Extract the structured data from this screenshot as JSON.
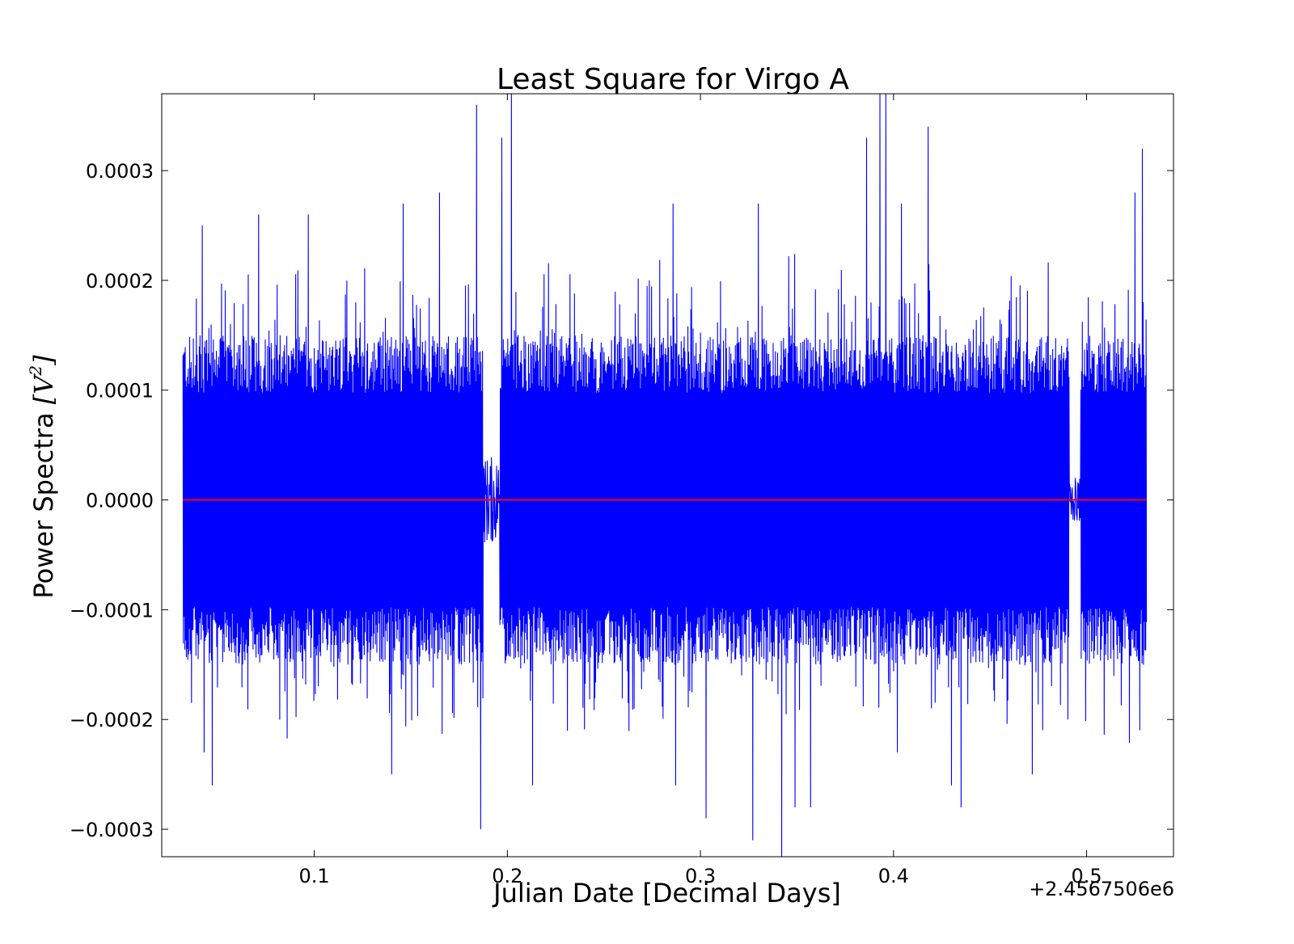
{
  "chart_data": {
    "type": "line",
    "title": "Least Square for Virgo A",
    "xlabel": "Julian Date [Decimal Days]",
    "ylabel_text": "Power Spectra ",
    "ylabel_unit_open": "[",
    "ylabel_unit_symbol": "V",
    "ylabel_unit_power": "2",
    "ylabel_unit_close": "]",
    "x_offset_label": "+2.4567506e6",
    "xlim": [
      0.021,
      0.545
    ],
    "ylim": [
      -0.000325,
      0.00037
    ],
    "xticks": [
      0.1,
      0.2,
      0.3,
      0.4,
      0.5
    ],
    "xtick_labels": [
      "0.1",
      "0.2",
      "0.3",
      "0.4",
      "0.5"
    ],
    "yticks": [
      -0.0003,
      -0.0002,
      -0.0001,
      0.0,
      0.0001,
      0.0002,
      0.0003
    ],
    "ytick_labels": [
      "−0.0003",
      "−0.0002",
      "−0.0001",
      "0.0000",
      "0.0001",
      "0.0002",
      "0.0003"
    ],
    "grid": false,
    "series": [
      {
        "color": "#0000ff",
        "x_start": 0.032,
        "x_end": 0.531,
        "envelope_max": 0.00015,
        "envelope_min": -0.00015,
        "quiet_intervals": [
          {
            "x_start": 0.1875,
            "x_end": 0.196,
            "amplitude": 4e-05
          },
          {
            "x_start": 0.491,
            "x_end": 0.497,
            "amplitude": 2e-05
          }
        ],
        "peaks": [
          {
            "x": 0.184,
            "y": 0.00036
          },
          {
            "x": 0.202,
            "y": 0.00037
          },
          {
            "x": 0.197,
            "y": 0.00033
          },
          {
            "x": 0.393,
            "y": 0.00037
          },
          {
            "x": 0.396,
            "y": 0.00037
          },
          {
            "x": 0.386,
            "y": 0.00033
          },
          {
            "x": 0.418,
            "y": 0.00034
          },
          {
            "x": 0.529,
            "y": 0.00032
          },
          {
            "x": 0.165,
            "y": 0.00028
          },
          {
            "x": 0.146,
            "y": 0.00027
          },
          {
            "x": 0.525,
            "y": 0.00028
          },
          {
            "x": 0.33,
            "y": 0.00027
          },
          {
            "x": 0.286,
            "y": 0.00027
          },
          {
            "x": 0.404,
            "y": 0.00027
          },
          {
            "x": 0.097,
            "y": 0.00026
          },
          {
            "x": 0.071,
            "y": 0.00026
          },
          {
            "x": 0.042,
            "y": 0.00025
          },
          {
            "x": 0.186,
            "y": -0.0003
          },
          {
            "x": 0.342,
            "y": -0.000325
          },
          {
            "x": 0.327,
            "y": -0.00031
          },
          {
            "x": 0.303,
            "y": -0.00029
          },
          {
            "x": 0.349,
            "y": -0.00028
          },
          {
            "x": 0.435,
            "y": -0.00028
          },
          {
            "x": 0.357,
            "y": -0.00028
          },
          {
            "x": 0.047,
            "y": -0.00026
          },
          {
            "x": 0.213,
            "y": -0.00026
          },
          {
            "x": 0.287,
            "y": -0.00026
          },
          {
            "x": 0.43,
            "y": -0.00026
          },
          {
            "x": 0.14,
            "y": -0.00025
          },
          {
            "x": 0.472,
            "y": -0.00025
          },
          {
            "x": 0.402,
            "y": -0.00023
          },
          {
            "x": 0.043,
            "y": -0.00023
          }
        ]
      },
      {
        "color": "#ff0000",
        "x": [
          0.032,
          0.531
        ],
        "y": [
          0.0,
          0.0
        ]
      }
    ]
  }
}
